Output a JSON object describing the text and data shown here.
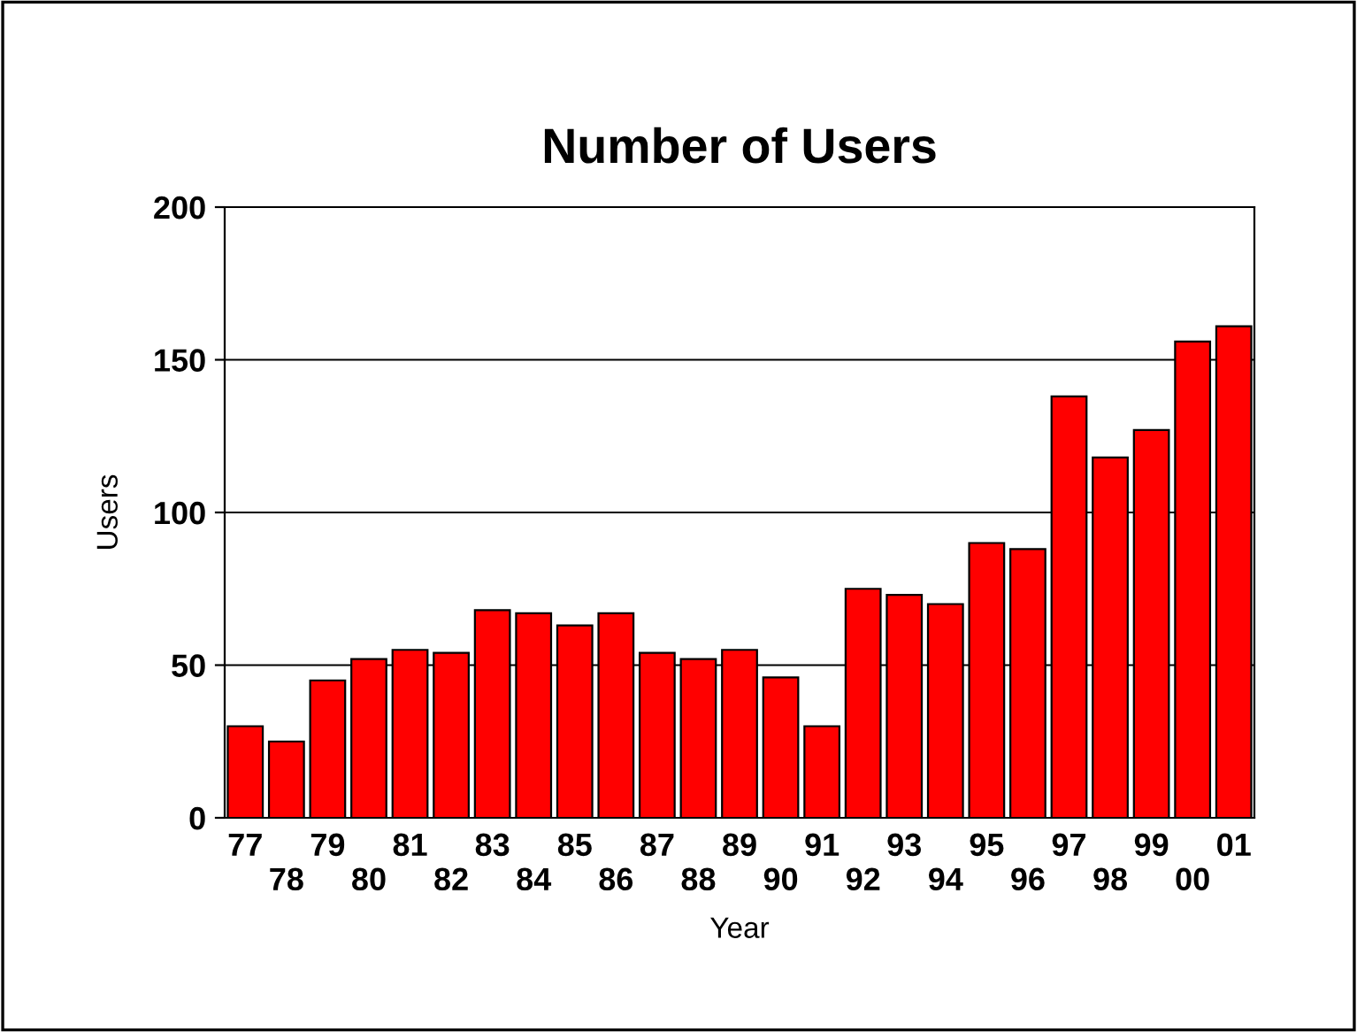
{
  "chart_data": {
    "type": "bar",
    "title": "Number of Users",
    "xlabel": "Year",
    "ylabel": "Users",
    "categories": [
      "77",
      "78",
      "79",
      "80",
      "81",
      "82",
      "83",
      "84",
      "85",
      "86",
      "87",
      "88",
      "89",
      "90",
      "91",
      "92",
      "93",
      "94",
      "95",
      "96",
      "97",
      "98",
      "99",
      "00",
      "01"
    ],
    "values": [
      30,
      25,
      45,
      52,
      55,
      54,
      68,
      67,
      63,
      67,
      54,
      52,
      55,
      46,
      30,
      75,
      73,
      70,
      90,
      88,
      138,
      118,
      127,
      156,
      161
    ],
    "color": "#ff0000",
    "ylim": [
      0,
      200
    ],
    "yticks": [
      0,
      50,
      100,
      150,
      200
    ],
    "grid": "y",
    "legend": false
  }
}
